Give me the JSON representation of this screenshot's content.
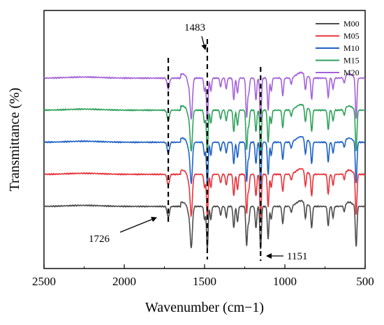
{
  "chart_data": {
    "type": "line",
    "xlabel": "Wavenumber (cm−1)",
    "ylabel": "Transmittance (%)",
    "x_axis": {
      "min": 500,
      "max": 2500,
      "reversed": true,
      "ticks": [
        2500,
        2000,
        1500,
        1000,
        500
      ]
    },
    "y_axis": {
      "tick_labels": false
    },
    "grid": false,
    "legend": {
      "placement": "top-right"
    },
    "series": [
      {
        "name": "M00",
        "color": "#4d4d4d",
        "baseline": 0
      },
      {
        "name": "M05",
        "color": "#e8333a",
        "baseline": 1
      },
      {
        "name": "M10",
        "color": "#1f63c6",
        "baseline": 2
      },
      {
        "name": "M15",
        "color": "#2fa25c",
        "baseline": 3
      },
      {
        "name": "M20",
        "color": "#a462d8",
        "baseline": 4
      }
    ],
    "peaks": [
      {
        "x": 1726,
        "depth": 0.25
      },
      {
        "x": 1600,
        "depth": 0.15
      },
      {
        "x": 1583,
        "depth": 0.95
      },
      {
        "x": 1500,
        "depth": 0.3
      },
      {
        "x": 1483,
        "depth": 1.0
      },
      {
        "x": 1461,
        "depth": 0.3
      },
      {
        "x": 1400,
        "depth": 0.2
      },
      {
        "x": 1365,
        "depth": 0.25
      },
      {
        "x": 1318,
        "depth": 0.5
      },
      {
        "x": 1295,
        "depth": 0.35
      },
      {
        "x": 1238,
        "depth": 0.9
      },
      {
        "x": 1225,
        "depth": 0.35
      },
      {
        "x": 1180,
        "depth": 0.5
      },
      {
        "x": 1151,
        "depth": 1.0
      },
      {
        "x": 1104,
        "depth": 0.75
      },
      {
        "x": 1085,
        "depth": 0.3
      },
      {
        "x": 1013,
        "depth": 0.4
      },
      {
        "x": 960,
        "depth": 0.15
      },
      {
        "x": 872,
        "depth": 0.35
      },
      {
        "x": 833,
        "depth": 0.5
      },
      {
        "x": 730,
        "depth": 0.45
      },
      {
        "x": 700,
        "depth": 0.25
      },
      {
        "x": 630,
        "depth": 0.15
      },
      {
        "x": 556,
        "depth": 0.95
      }
    ],
    "annotations": [
      {
        "text": "1483",
        "x": 1483,
        "dashed_line": true
      },
      {
        "text": "1726",
        "x": 1726,
        "dashed_line": true
      },
      {
        "text": "1151",
        "x": 1151,
        "dashed_line": true
      }
    ]
  }
}
